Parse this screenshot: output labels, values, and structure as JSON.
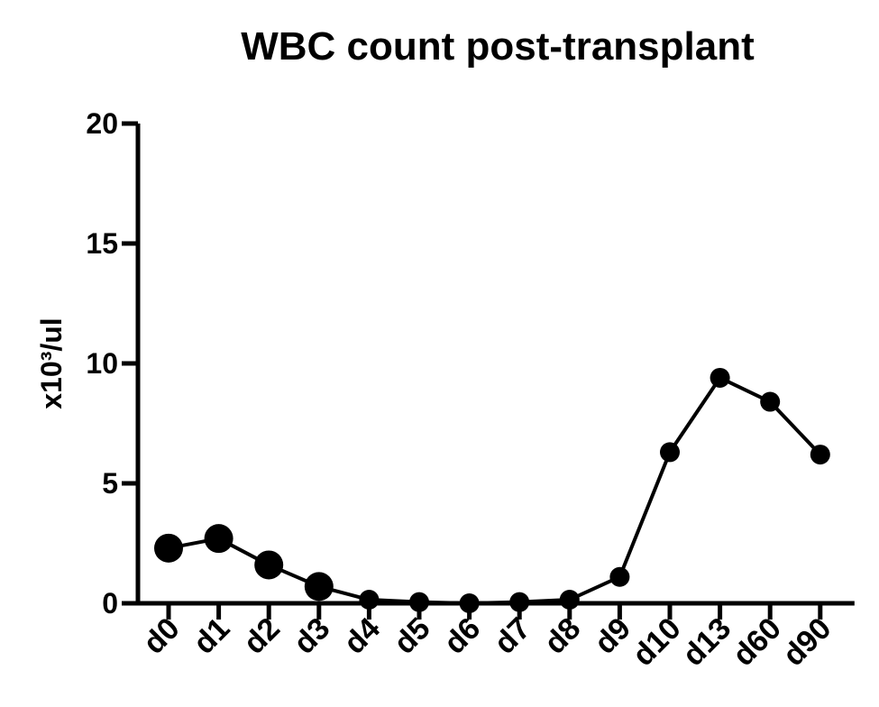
{
  "chart_data": {
    "type": "line",
    "title": "WBC count post-transplant",
    "ylabel": "x10³/ul",
    "xlabel": "",
    "categories": [
      "d0",
      "d1",
      "d2",
      "d3",
      "d4",
      "d5",
      "d6",
      "d7",
      "d8",
      "d9",
      "d10",
      "d13",
      "d60",
      "d90"
    ],
    "series": [
      {
        "values": [
          2.3,
          2.7,
          1.6,
          0.7,
          0.15,
          0.05,
          0.0,
          0.05,
          0.15,
          1.1,
          6.3,
          9.4,
          8.4,
          6.2
        ],
        "marker_sizes": [
          "large",
          "large",
          "large",
          "large",
          "small",
          "small",
          "small",
          "small",
          "small",
          "small",
          "small",
          "small",
          "small",
          "small"
        ]
      }
    ],
    "ylim": [
      0,
      20
    ],
    "yticks": [
      0,
      5,
      10,
      15,
      20
    ],
    "grid": false,
    "color": "#000000"
  }
}
